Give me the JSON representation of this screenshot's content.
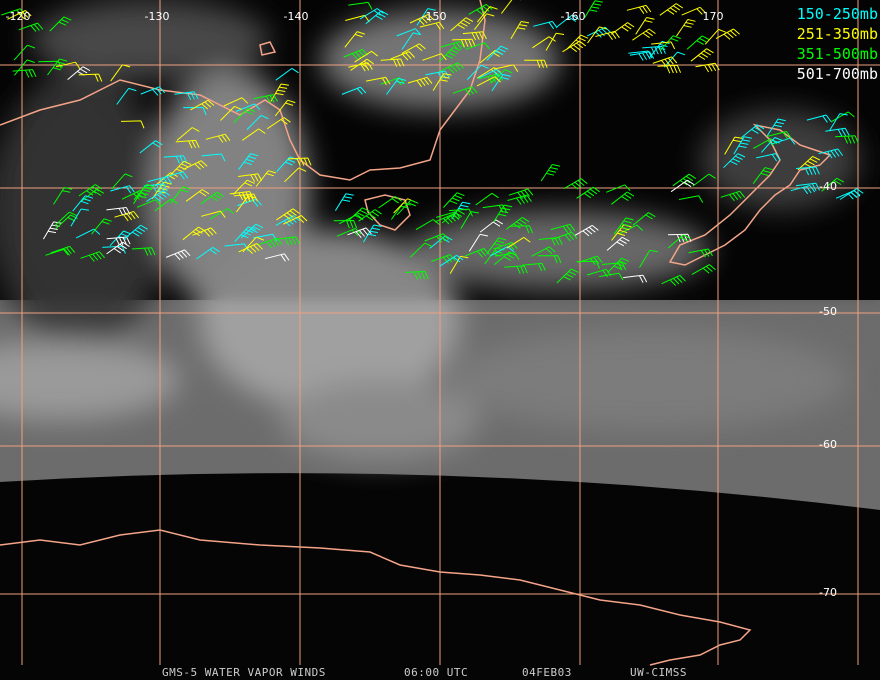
{
  "map": {
    "longitude_labels": [
      "-120",
      "-130",
      "-140",
      "-150",
      "-160",
      "170"
    ],
    "latitude_labels": [
      "-40",
      "-50",
      "-60",
      "-70"
    ],
    "legend": [
      {
        "label": "150-250mb",
        "color": "#00ffff"
      },
      {
        "label": "251-350mb",
        "color": "#ffff00"
      },
      {
        "label": "351-500mb",
        "color": "#00ff00"
      },
      {
        "label": "501-700mb",
        "color": "#ffffff"
      }
    ],
    "footer": {
      "product": "GMS-5 WATER VAPOR WINDS",
      "time": "06:00 UTC",
      "date": "04FEB03",
      "source": "UW-CIMSS"
    }
  }
}
